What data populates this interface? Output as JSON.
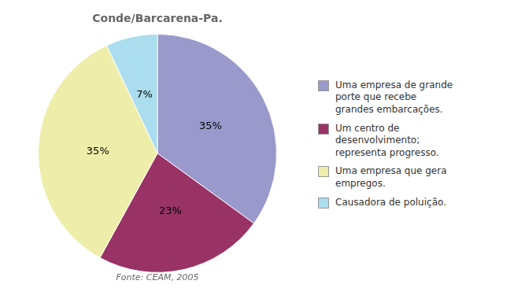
{
  "chart_data": {
    "type": "pie",
    "title": "Conde/Barcarena-Pa.",
    "subtitle": "Fonte: CEAM, 2005",
    "categories": [
      "Uma empresa de grande\nporte que recebe\ngrandes embarcações.",
      "Um centro de\ndesenvolvimento;\nrepresenta progresso.",
      "Uma empresa que gera\nempregos.",
      "Causadora de poluição."
    ],
    "values": [
      35,
      23,
      35,
      7
    ],
    "value_labels": [
      "35%",
      "23%",
      "35%",
      "7%"
    ],
    "colors": [
      "#9999CC",
      "#993366",
      "#EEEEAA",
      "#AADDEE"
    ],
    "data_labels": true,
    "legend": "right"
  }
}
